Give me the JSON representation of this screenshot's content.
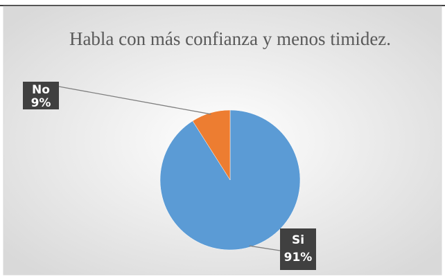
{
  "chart_data": {
    "type": "pie",
    "title": "Habla con más confianza y menos timidez.",
    "categories": [
      "Si",
      "No"
    ],
    "values": [
      91,
      9
    ],
    "value_labels": [
      "91%",
      "9%"
    ],
    "colors": [
      "#5b9bd5",
      "#ed7d31"
    ]
  }
}
